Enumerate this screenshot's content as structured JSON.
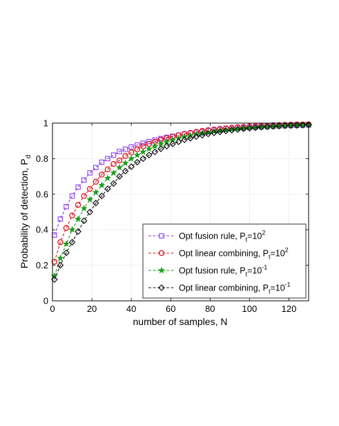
{
  "chart_data": {
    "type": "line",
    "xlabel": "number of samples, N",
    "ylabel_main": "Probability of detection, P",
    "ylabel_sub": "d",
    "xlim": [
      0,
      130
    ],
    "ylim": [
      0,
      1
    ],
    "xticks": [
      0,
      20,
      40,
      60,
      80,
      100,
      120
    ],
    "yticks": [
      0,
      0.2,
      0.4,
      0.6,
      0.8,
      1
    ],
    "ytick_labels": [
      "0",
      "0.2",
      "0.4",
      "0.6",
      "0.8",
      "1"
    ],
    "grid": true,
    "legend_position": "lower-right",
    "x": [
      1,
      4,
      7,
      10,
      13,
      16,
      19,
      22,
      25,
      28,
      31,
      34,
      37,
      40,
      43,
      46,
      49,
      52,
      55,
      58,
      61,
      64,
      67,
      70,
      73,
      76,
      79,
      82,
      85,
      88,
      91,
      94,
      97,
      100,
      103,
      106,
      109,
      112,
      115,
      118,
      121,
      124,
      127,
      130
    ],
    "series": [
      {
        "legend_main": "Opt fusion rule, P",
        "legend_sub": "t",
        "legend_eq": "=10",
        "legend_sup": "2",
        "color": "#8b3cf0",
        "marker": "square",
        "values": [
          0.37,
          0.46,
          0.53,
          0.59,
          0.64,
          0.68,
          0.72,
          0.75,
          0.78,
          0.8,
          0.82,
          0.84,
          0.853,
          0.866,
          0.877,
          0.887,
          0.896,
          0.905,
          0.913,
          0.92,
          0.926,
          0.932,
          0.938,
          0.943,
          0.948,
          0.952,
          0.956,
          0.96,
          0.963,
          0.966,
          0.969,
          0.972,
          0.974,
          0.976,
          0.978,
          0.98,
          0.982,
          0.983,
          0.985,
          0.986,
          0.987,
          0.988,
          0.989,
          0.99
        ]
      },
      {
        "legend_main": "Opt linear combining, P",
        "legend_sub": "t",
        "legend_eq": "=10",
        "legend_sup": "2",
        "color": "#e0141c",
        "marker": "circle",
        "values": [
          0.22,
          0.33,
          0.41,
          0.48,
          0.54,
          0.59,
          0.63,
          0.67,
          0.71,
          0.74,
          0.77,
          0.79,
          0.815,
          0.835,
          0.853,
          0.869,
          0.883,
          0.895,
          0.906,
          0.916,
          0.924,
          0.932,
          0.939,
          0.945,
          0.951,
          0.956,
          0.96,
          0.964,
          0.968,
          0.971,
          0.974,
          0.977,
          0.979,
          0.981,
          0.983,
          0.985,
          0.986,
          0.988,
          0.989,
          0.99,
          0.991,
          0.992,
          0.992,
          0.993
        ]
      },
      {
        "legend_main": "Opt fusion rule, P",
        "legend_sub": "t",
        "legend_eq": "=10",
        "legend_sup": "-1",
        "color": "#1a9e1a",
        "marker": "star",
        "values": [
          0.14,
          0.24,
          0.32,
          0.4,
          0.46,
          0.52,
          0.57,
          0.61,
          0.65,
          0.69,
          0.72,
          0.75,
          0.775,
          0.8,
          0.82,
          0.838,
          0.855,
          0.87,
          0.883,
          0.895,
          0.905,
          0.914,
          0.923,
          0.93,
          0.937,
          0.943,
          0.948,
          0.953,
          0.957,
          0.961,
          0.965,
          0.968,
          0.971,
          0.974,
          0.976,
          0.978,
          0.98,
          0.982,
          0.984,
          0.985,
          0.986,
          0.987,
          0.988,
          0.989
        ]
      },
      {
        "legend_main": "Opt linear combining, P",
        "legend_sub": "t",
        "legend_eq": "=10",
        "legend_sup": "-1",
        "color": "#111111",
        "marker": "diamond",
        "values": [
          0.12,
          0.2,
          0.27,
          0.33,
          0.39,
          0.45,
          0.5,
          0.55,
          0.59,
          0.63,
          0.66,
          0.7,
          0.73,
          0.755,
          0.78,
          0.8,
          0.82,
          0.838,
          0.855,
          0.87,
          0.883,
          0.895,
          0.906,
          0.915,
          0.924,
          0.932,
          0.939,
          0.945,
          0.951,
          0.956,
          0.96,
          0.964,
          0.968,
          0.971,
          0.974,
          0.977,
          0.979,
          0.981,
          0.983,
          0.985,
          0.986,
          0.987,
          0.988,
          0.99
        ]
      }
    ]
  }
}
